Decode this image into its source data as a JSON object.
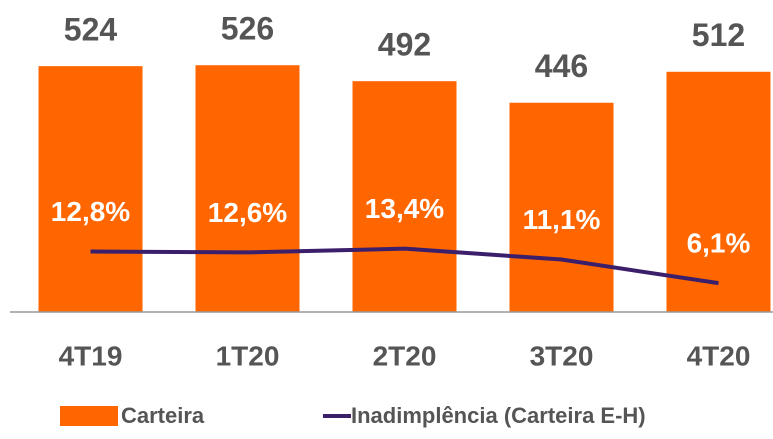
{
  "chart_data": {
    "type": "bar",
    "categories": [
      "4T19",
      "1T20",
      "2T20",
      "3T20",
      "4T20"
    ],
    "series": [
      {
        "name": "Carteira",
        "type": "bar",
        "color": "#ff6600",
        "values": [
          524,
          526,
          492,
          446,
          512
        ]
      },
      {
        "name": "Inadimplência (Carteira E-H)",
        "type": "line",
        "color": "#3b1f6b",
        "axis": "y2",
        "values": [
          12.8,
          12.6,
          13.4,
          11.1,
          6.1
        ],
        "value_labels": [
          "12,8%",
          "12,6%",
          "13,4%",
          "11,1%",
          "6,1%"
        ]
      }
    ],
    "ylim": [
      0,
      665
    ],
    "y2lim": [
      0,
      66
    ],
    "legend": "bottom"
  }
}
